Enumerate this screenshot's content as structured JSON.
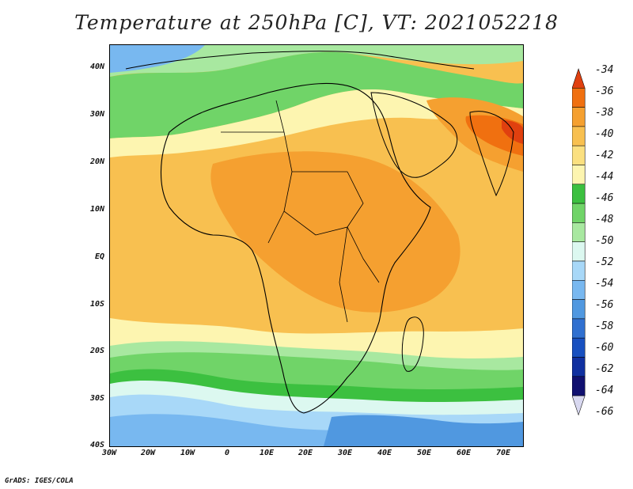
{
  "title": "Temperature at 250hPa [C], VT: 2021052218",
  "credit": "GrADS: IGES/COLA",
  "map": {
    "lat_labels": [
      "40N",
      "30N",
      "20N",
      "10N",
      "EQ",
      "10S",
      "20S",
      "30S",
      "40S"
    ],
    "lon_labels": [
      "30W",
      "20W",
      "10W",
      "0",
      "10E",
      "20E",
      "30E",
      "40E",
      "50E",
      "60E",
      "70E"
    ]
  },
  "colorbar": {
    "labels": [
      "-34",
      "-36",
      "-38",
      "-40",
      "-42",
      "-44",
      "-46",
      "-48",
      "-50",
      "-52",
      "-54",
      "-56",
      "-58",
      "-60",
      "-62",
      "-64",
      "-66"
    ],
    "colors": [
      "#e0400f",
      "#f07010",
      "#f5a030",
      "#f8c050",
      "#fbe080",
      "#fdf5b0",
      "#3cc040",
      "#70d468",
      "#a8e8a0",
      "#dcf8f0",
      "#a8d8f8",
      "#78b8f0",
      "#5098e0",
      "#3070d0",
      "#1850c0",
      "#1030a0",
      "#101070",
      "#d8d8f0"
    ]
  }
}
